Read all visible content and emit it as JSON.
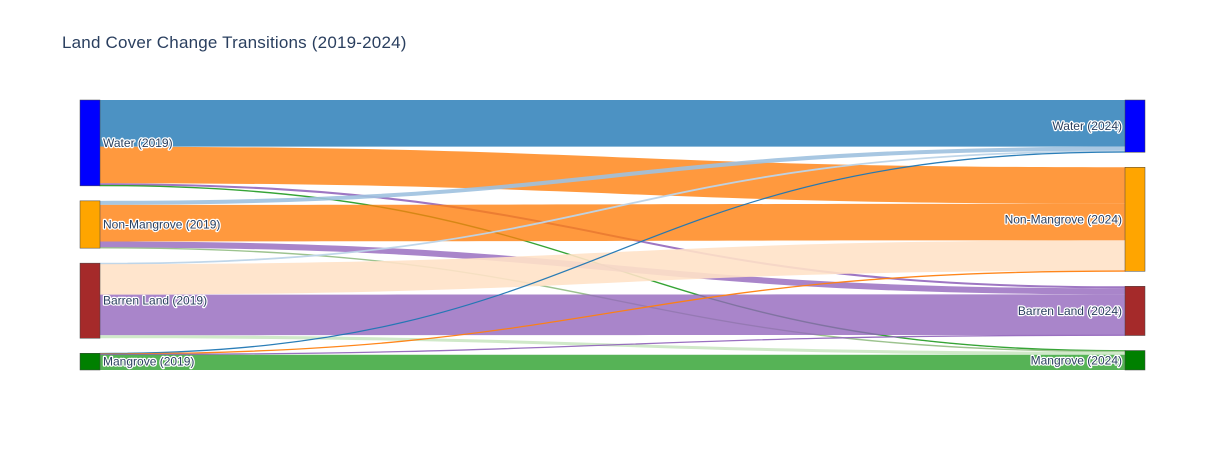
{
  "chart_data": {
    "type": "sankey",
    "title": "Land Cover Change Transitions (2019-2024)",
    "nodes": [
      {
        "id": "w19",
        "label": "Water (2019)",
        "color": "#0000ff",
        "column": 0
      },
      {
        "id": "n19",
        "label": "Non-Mangrove (2019)",
        "color": "#ffa500",
        "column": 0
      },
      {
        "id": "b19",
        "label": "Barren Land (2019)",
        "color": "#a52a2a",
        "column": 0
      },
      {
        "id": "m19",
        "label": "Mangrove (2019)",
        "color": "#008000",
        "column": 0
      },
      {
        "id": "w24",
        "label": "Water (2024)",
        "color": "#0000ff",
        "column": 1
      },
      {
        "id": "n24",
        "label": "Non-Mangrove (2024)",
        "color": "#ffa500",
        "column": 1
      },
      {
        "id": "b24",
        "label": "Barren Land (2024)",
        "color": "#a52a2a",
        "column": 1
      },
      {
        "id": "m24",
        "label": "Mangrove (2024)",
        "color": "#008000",
        "column": 1
      }
    ],
    "links": [
      {
        "source": "w19",
        "target": "w24",
        "value": 46,
        "color": "#1f77b4",
        "opacity": 0.8
      },
      {
        "source": "w19",
        "target": "n24",
        "value": 36,
        "color": "#ff7f0e",
        "opacity": 0.8
      },
      {
        "source": "w19",
        "target": "b24",
        "value": 2,
        "color": "#9467bd",
        "opacity": 0.9
      },
      {
        "source": "w19",
        "target": "m24",
        "value": 0.6,
        "color": "#2ca02c",
        "opacity": 0.9
      },
      {
        "source": "n19",
        "target": "w24",
        "value": 4,
        "color": "#9fc1df",
        "opacity": 0.9
      },
      {
        "source": "n19",
        "target": "n24",
        "value": 36,
        "color": "#ff7f0e",
        "opacity": 0.8
      },
      {
        "source": "n19",
        "target": "b24",
        "value": 6,
        "color": "#9467bd",
        "opacity": 0.8
      },
      {
        "source": "n19",
        "target": "m24",
        "value": 0.6,
        "color": "#98c08a",
        "opacity": 0.9
      },
      {
        "source": "b19",
        "target": "w24",
        "value": 1,
        "color": "#bcd4e8",
        "opacity": 0.9
      },
      {
        "source": "b19",
        "target": "n24",
        "value": 30,
        "color": "#ffe2c8",
        "opacity": 0.9
      },
      {
        "source": "b19",
        "target": "b24",
        "value": 40,
        "color": "#9467bd",
        "opacity": 0.8
      },
      {
        "source": "b19",
        "target": "m24",
        "value": 3,
        "color": "#cbe7c3",
        "opacity": 0.9
      },
      {
        "source": "m19",
        "target": "w24",
        "value": 0.5,
        "color": "#1f77b4",
        "opacity": 0.9
      },
      {
        "source": "m19",
        "target": "n24",
        "value": 0.5,
        "color": "#ff7f0e",
        "opacity": 0.9
      },
      {
        "source": "m19",
        "target": "b24",
        "value": 0.5,
        "color": "#9467bd",
        "opacity": 0.9
      },
      {
        "source": "m19",
        "target": "m24",
        "value": 15,
        "color": "#2ca02c",
        "opacity": 0.8
      }
    ]
  }
}
